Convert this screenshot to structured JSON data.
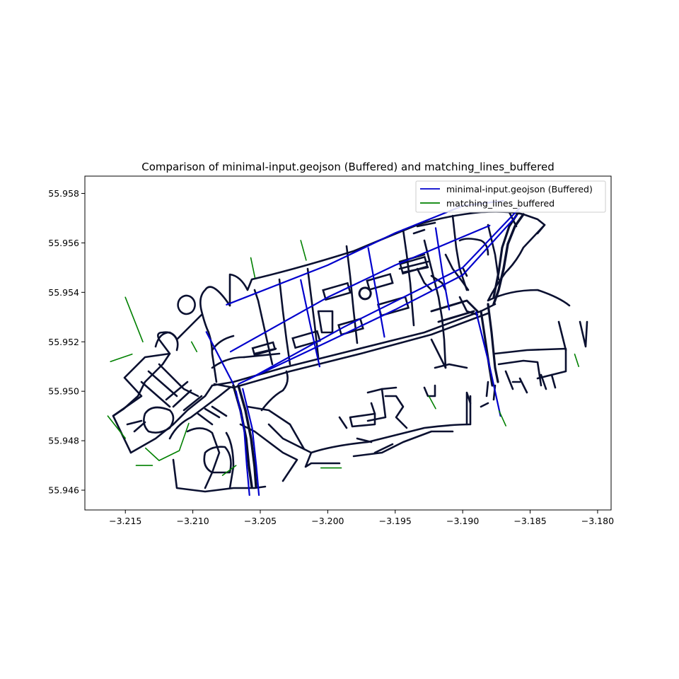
{
  "chart_data": {
    "type": "line",
    "title": "Comparison of minimal-input.geojson (Buffered) and matching_lines_buffered",
    "xlabel": "",
    "ylabel": "",
    "xlim": [
      -3.218,
      -3.179
    ],
    "ylim": [
      55.9452,
      55.9587
    ],
    "xticks": [
      -3.215,
      -3.21,
      -3.205,
      -3.2,
      -3.195,
      -3.19,
      -3.185,
      -3.18
    ],
    "xtick_labels": [
      "−3.215",
      "−3.210",
      "−3.205",
      "−3.200",
      "−3.195",
      "−3.190",
      "−3.185",
      "−3.180"
    ],
    "yticks": [
      55.946,
      55.948,
      55.95,
      55.952,
      55.954,
      55.956,
      55.958
    ],
    "ytick_labels": [
      "55.946",
      "55.948",
      "55.950",
      "55.952",
      "55.954",
      "55.956",
      "55.958"
    ],
    "grid": false,
    "legend_position": "upper-right",
    "series": [
      {
        "name": "minimal-input.geojson (Buffered)",
        "color": "#0000cc",
        "lines": [
          [
            [
              -3.2066,
              55.9503
            ],
            [
              -3.2,
              55.952
            ],
            [
              -3.195,
              55.9533
            ],
            [
              -3.19,
              55.9547
            ],
            [
              -3.186,
              55.9571
            ]
          ],
          [
            [
              -3.2058,
              55.9505
            ],
            [
              -3.1988,
              55.9526
            ],
            [
              -3.19,
              55.955
            ],
            [
              -3.1858,
              55.9574
            ]
          ],
          [
            [
              -3.2072,
              55.9516
            ],
            [
              -3.2,
              55.9538
            ],
            [
              -3.195,
              55.9551
            ],
            [
              -3.188,
              55.9567
            ]
          ],
          [
            [
              -3.2075,
              55.9535
            ],
            [
              -3.2,
              55.9551
            ],
            [
              -3.195,
              55.9564
            ],
            [
              -3.19,
              55.9575
            ],
            [
              -3.187,
              55.9577
            ]
          ],
          [
            [
              -3.2068,
              55.95
            ],
            [
              -3.2062,
              55.9485
            ],
            [
              -3.206,
              55.947
            ],
            [
              -3.2058,
              55.9458
            ]
          ],
          [
            [
              -3.2063,
              55.9501
            ],
            [
              -3.2056,
              55.9485
            ],
            [
              -3.2053,
              55.947
            ],
            [
              -3.2051,
              55.9458
            ]
          ],
          [
            [
              -3.202,
              55.9545
            ],
            [
              -3.2013,
              55.9527
            ],
            [
              -3.2006,
              55.951
            ]
          ],
          [
            [
              -3.197,
              55.9558
            ],
            [
              -3.1964,
              55.954
            ],
            [
              -3.1958,
              55.9522
            ]
          ],
          [
            [
              -3.192,
              55.9566
            ],
            [
              -3.1915,
              55.9548
            ],
            [
              -3.191,
              55.9533
            ]
          ],
          [
            [
              -3.189,
              55.9532
            ],
            [
              -3.188,
              55.951
            ],
            [
              -3.1872,
              55.949
            ]
          ],
          [
            [
              -3.209,
              55.9524
            ],
            [
              -3.207,
              55.9503
            ]
          ]
        ]
      },
      {
        "name": "matching_lines_buffered",
        "color": "#008000",
        "lines": [
          [
            [
              -3.215,
              55.9538
            ],
            [
              -3.2137,
              55.952
            ]
          ],
          [
            [
              -3.2161,
              55.9512
            ],
            [
              -3.2145,
              55.9515
            ]
          ],
          [
            [
              -3.2163,
              55.949
            ],
            [
              -3.215,
              55.9481
            ]
          ],
          [
            [
              -3.2135,
              55.9477
            ],
            [
              -3.2125,
              55.9472
            ],
            [
              -3.211,
              55.9476
            ],
            [
              -3.2103,
              55.9487
            ]
          ],
          [
            [
              -3.2142,
              55.947
            ],
            [
              -3.213,
              55.947
            ]
          ],
          [
            [
              -3.202,
              55.9561
            ],
            [
              -3.2016,
              55.9553
            ]
          ],
          [
            [
              -3.2057,
              55.9554
            ],
            [
              -3.2054,
              55.9546
            ]
          ],
          [
            [
              -3.2078,
              55.9466
            ],
            [
              -3.2068,
              55.947
            ]
          ],
          [
            [
              -3.2005,
              55.9469
            ],
            [
              -3.199,
              55.9469
            ]
          ],
          [
            [
              -3.1873,
              55.9492
            ],
            [
              -3.1868,
              55.9486
            ]
          ],
          [
            [
              -3.1817,
              55.9515
            ],
            [
              -3.1814,
              55.951
            ]
          ],
          [
            [
              -3.2101,
              55.952
            ],
            [
              -3.2097,
              55.9516
            ]
          ],
          [
            [
              -3.1925,
              55.9498
            ],
            [
              -3.192,
              55.9493
            ]
          ]
        ]
      }
    ]
  }
}
